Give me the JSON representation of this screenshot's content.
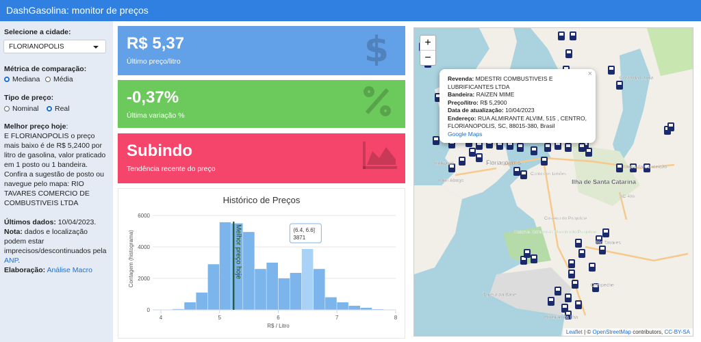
{
  "header": {
    "title": "DashGasolina: monitor de preços"
  },
  "sidebar": {
    "city_label": "Selecione a cidade:",
    "city": "FLORIANOPOLIS",
    "metric_label": "Métrica de comparação:",
    "metric_options": [
      "Mediana",
      "Média"
    ],
    "metric_selected": 0,
    "price_label": "Tipo de preço:",
    "price_options": [
      "Nominal",
      "Real"
    ],
    "price_selected": 1,
    "best_label": "Melhor preço hoje",
    "best_colon": ":",
    "best_text": "E FLORIANOPOLIS o preço mais baixo é de R$ 5,2400 por litro de gasolina, valor praticado em 1 posto ou 1 bandeira. Confira a sugestão de posto ou navegue pelo mapa: RIO TAVARES COMERCIO DE COMBUSTIVEIS LTDA",
    "last_label": "Últimos dados:",
    "last_text": "10/04/2023.",
    "note_label": "Nota:",
    "note_text": "dados e localização podem estar imprecisos/descontinuados pela",
    "note_link": "ANP",
    "note_end": ".",
    "credit_label": "Elaboração:",
    "credit_link": "Análise Macro"
  },
  "cards": [
    {
      "value": "R$ 5,37",
      "label": "Último preço/litro",
      "color": "#62a0e8"
    },
    {
      "value": "-0,37%",
      "label": "Última variação %",
      "color": "#6cc95c"
    },
    {
      "value": "Subindo",
      "label": "Tendência recente do preço",
      "color": "#f5456b"
    }
  ],
  "chart_data": {
    "type": "histogram",
    "title": "Histórico de Preços",
    "x_label": "R$ / Litro",
    "y_label": "Contagem (histograma)",
    "bins": [
      4.0,
      4.2,
      4.4,
      4.6,
      4.8,
      5.0,
      5.2,
      5.4,
      5.6,
      5.8,
      6.0,
      6.2,
      6.4,
      6.6,
      6.8,
      7.0,
      7.2,
      7.4,
      7.6,
      7.8,
      8.0
    ],
    "values": [
      0,
      50,
      480,
      1100,
      2900,
      5570,
      5500,
      4950,
      2600,
      3000,
      2000,
      2350,
      3871,
      2600,
      800,
      480,
      260,
      130,
      40,
      0
    ],
    "color": "#7cb5ec",
    "highlight_color": "#a8d3f7",
    "xlim": [
      4,
      8
    ],
    "xticks": [
      4,
      5,
      6,
      7,
      8
    ],
    "ylim": [
      0,
      6500
    ],
    "yticks": [
      0,
      2000,
      4000,
      6000
    ],
    "grid": true,
    "reference_line": {
      "value": 5.24,
      "label": "Melhor preço hoje",
      "color": "#1d4d1d"
    },
    "tooltip": {
      "label": "(6.4, 6.6]",
      "bin": 6.4
    }
  },
  "map": {
    "zoom_in": "+",
    "zoom_out": "−",
    "close": "×",
    "popup": [
      {
        "label": "Revenda",
        "value": "MDESTRI COMBUSTIVEIS E LUBRIFICANTES LTDA"
      },
      {
        "label": "Bandeira",
        "value": "RAIZEN MIME"
      },
      {
        "label": "Preço/litro",
        "value": "R$ 5,2900"
      },
      {
        "label": "Data de atualização",
        "value": "10/04/2023"
      },
      {
        "label": "Endereço",
        "value": "RUA ALMIRANTE ALVIM, 515 , CENTRO, FLORIANOPOLIS, SC, 88015-380, Brasil"
      }
    ],
    "popup_colon": ":",
    "popup_link": "Google Maps",
    "places": [
      "Florianópolis",
      "Ilha de Santa Catarina",
      "Bom Abrigo",
      "Costa da Lagoa",
      "Lagoa da Conceição",
      "Canto dos Limões",
      "Costeira do Pirajubaé",
      "Rio Tavares",
      "Campeche",
      "Tapera da Base",
      "Ribeirão da Ilha",
      "Kobrasol",
      "SC-406",
      "Reserva Extrativista Marinha do Pirajubaé"
    ],
    "attribution": [
      "Leaflet",
      "| ©",
      "OpenStreetMap",
      "contributors,",
      "CC-BY-SA"
    ]
  }
}
